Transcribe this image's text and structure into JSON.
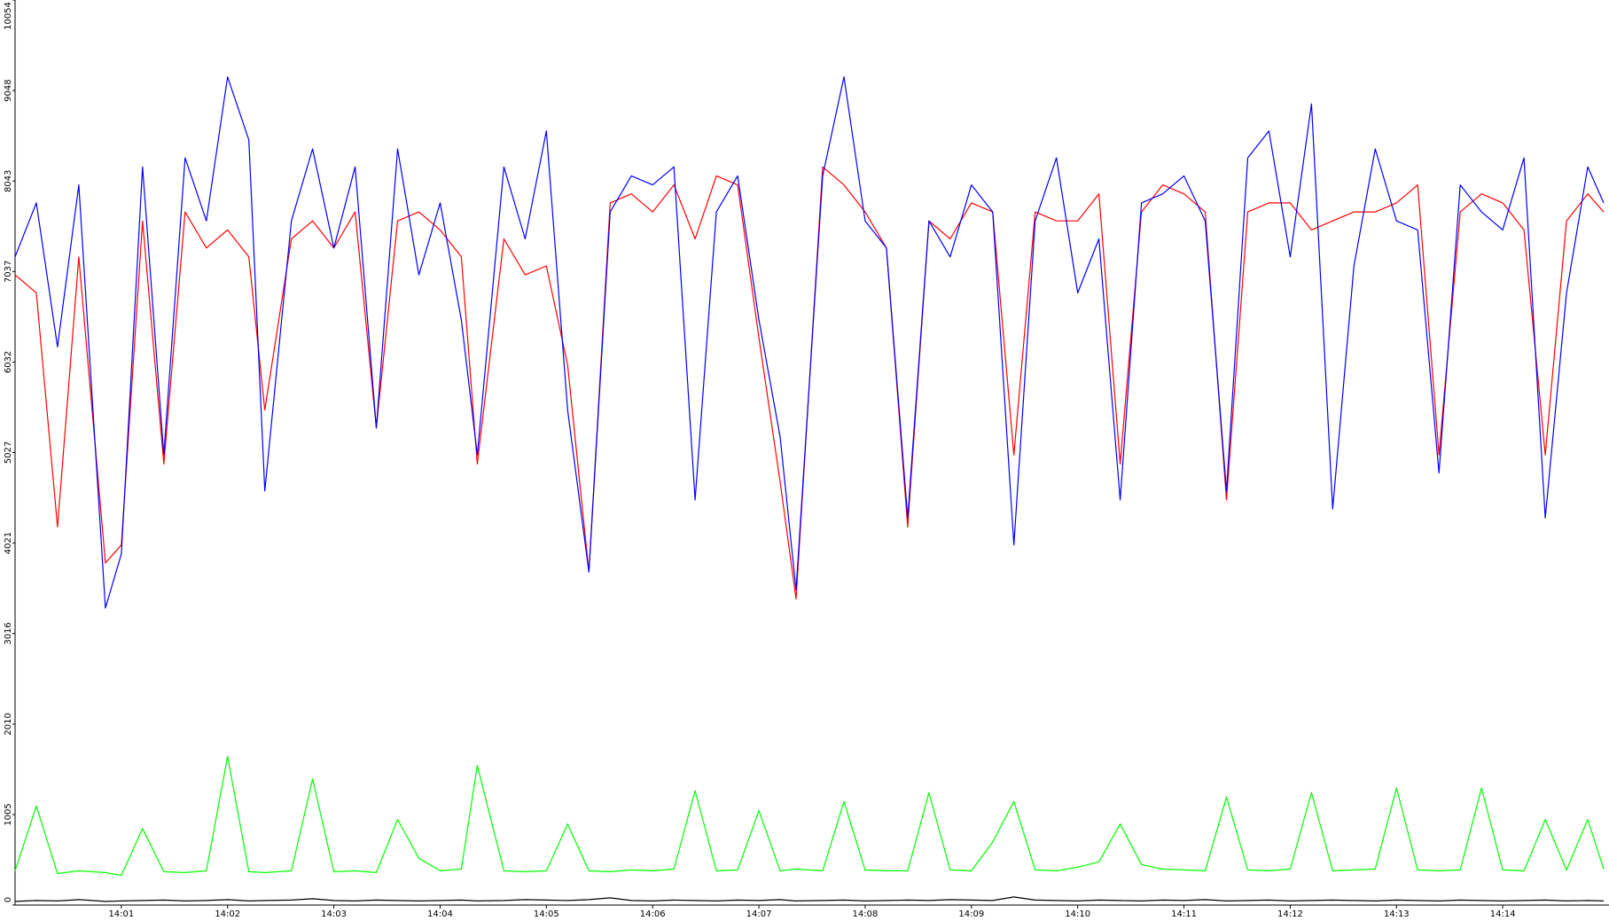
{
  "chart_data": {
    "type": "line",
    "x": [
      0.0,
      0.2,
      0.4,
      0.6,
      0.85,
      1.0,
      1.2,
      1.4,
      1.6,
      1.8,
      2.0,
      2.2,
      2.35,
      2.6,
      2.8,
      3.0,
      3.2,
      3.4,
      3.6,
      3.8,
      4.0,
      4.2,
      4.35,
      4.6,
      4.8,
      5.0,
      5.2,
      5.4,
      5.6,
      5.8,
      6.0,
      6.2,
      6.4,
      6.6,
      6.8,
      7.0,
      7.2,
      7.35,
      7.6,
      7.8,
      8.0,
      8.2,
      8.4,
      8.6,
      8.8,
      9.0,
      9.2,
      9.4,
      9.6,
      9.8,
      10.0,
      10.2,
      10.4,
      10.6,
      10.8,
      11.0,
      11.2,
      11.4,
      11.6,
      11.8,
      12.0,
      12.2,
      12.4,
      12.6,
      12.8,
      13.0,
      13.2,
      13.4,
      13.6,
      13.8,
      14.0,
      14.2,
      14.4,
      14.6,
      14.8,
      14.95
    ],
    "series": [
      {
        "color": "#ff0000",
        "values": [
          7000,
          6800,
          4200,
          7200,
          3800,
          4000,
          7600,
          4900,
          7700,
          7300,
          7500,
          7200,
          5500,
          7400,
          7600,
          7300,
          7700,
          5300,
          7600,
          7700,
          7500,
          7200,
          4900,
          7400,
          7000,
          7100,
          6000,
          3700,
          7800,
          7900,
          7700,
          8000,
          7400,
          8100,
          8000,
          6300,
          4700,
          3400,
          8200,
          8000,
          7700,
          7300,
          4200,
          7600,
          7400,
          7800,
          7700,
          5000,
          7700,
          7600,
          7600,
          7900,
          4900,
          7700,
          8000,
          7900,
          7700,
          4500,
          7700,
          7800,
          7800,
          7500,
          7600,
          7700,
          7700,
          7800,
          8000,
          5000,
          7700,
          7900,
          7800,
          7500,
          5000,
          7600,
          7900,
          7700
        ]
      },
      {
        "color": "#0000ff",
        "values": [
          7200,
          7800,
          6200,
          8000,
          3300,
          3900,
          8200,
          5000,
          8300,
          7600,
          9200,
          8500,
          4600,
          7600,
          8400,
          7300,
          8200,
          5300,
          8400,
          7000,
          7800,
          6500,
          5000,
          8200,
          7400,
          8600,
          5500,
          3700,
          7700,
          8100,
          8000,
          8200,
          4500,
          7700,
          8100,
          6500,
          5200,
          3500,
          8100,
          9200,
          7600,
          7300,
          4300,
          7600,
          7200,
          8000,
          7700,
          4000,
          7600,
          8300,
          6800,
          7400,
          4500,
          7800,
          7900,
          8100,
          7600,
          4600,
          8300,
          8600,
          7200,
          8900,
          4400,
          7100,
          8400,
          7600,
          7500,
          4800,
          8000,
          7700,
          7500,
          8300,
          4300,
          6800,
          8200,
          7800
        ]
      },
      {
        "color": "#00ff00",
        "values": [
          380,
          1100,
          350,
          380,
          360,
          330,
          850,
          370,
          360,
          380,
          1650,
          370,
          360,
          380,
          1400,
          370,
          380,
          360,
          950,
          520,
          380,
          400,
          1550,
          380,
          370,
          380,
          900,
          380,
          370,
          390,
          380,
          400,
          1270,
          380,
          390,
          1050,
          380,
          400,
          380,
          1150,
          390,
          380,
          380,
          1250,
          390,
          380,
          700,
          1150,
          390,
          380,
          420,
          480,
          900,
          450,
          400,
          390,
          380,
          1200,
          390,
          380,
          400,
          1250,
          380,
          390,
          400,
          1300,
          390,
          380,
          390,
          1300,
          390,
          380,
          950,
          390,
          950,
          400
        ]
      },
      {
        "color": "#000000",
        "values": [
          40,
          50,
          45,
          60,
          40,
          45,
          50,
          55,
          45,
          50,
          60,
          45,
          50,
          55,
          70,
          50,
          45,
          55,
          50,
          45,
          50,
          55,
          45,
          50,
          60,
          55,
          50,
          60,
          80,
          50,
          45,
          55,
          50,
          45,
          55,
          50,
          60,
          45,
          50,
          55,
          45,
          50,
          55,
          50,
          60,
          55,
          50,
          90,
          55,
          50,
          45,
          55,
          50,
          45,
          55,
          50,
          60,
          45,
          50,
          55,
          45,
          50,
          55,
          50,
          45,
          55,
          50,
          45,
          55,
          50,
          45,
          50,
          55,
          45,
          50,
          45
        ]
      }
    ],
    "xlim": [
      0,
      15
    ],
    "xticks": [
      {
        "value": 1,
        "label": "14:01"
      },
      {
        "value": 2,
        "label": "14:02"
      },
      {
        "value": 3,
        "label": "14:03"
      },
      {
        "value": 4,
        "label": "14:04"
      },
      {
        "value": 5,
        "label": "14:05"
      },
      {
        "value": 6,
        "label": "14:06"
      },
      {
        "value": 7,
        "label": "14:07"
      },
      {
        "value": 8,
        "label": "14:08"
      },
      {
        "value": 9,
        "label": "14:09"
      },
      {
        "value": 10,
        "label": "14:10"
      },
      {
        "value": 11,
        "label": "14:11"
      },
      {
        "value": 12,
        "label": "14:12"
      },
      {
        "value": 13,
        "label": "14:13"
      },
      {
        "value": 14,
        "label": "14:14"
      }
    ],
    "ylim": [
      0,
      10054
    ],
    "yticks": [
      0,
      1005,
      2010,
      3016,
      4021,
      5027,
      6032,
      7037,
      8043,
      9048,
      10054
    ],
    "grid": false
  }
}
